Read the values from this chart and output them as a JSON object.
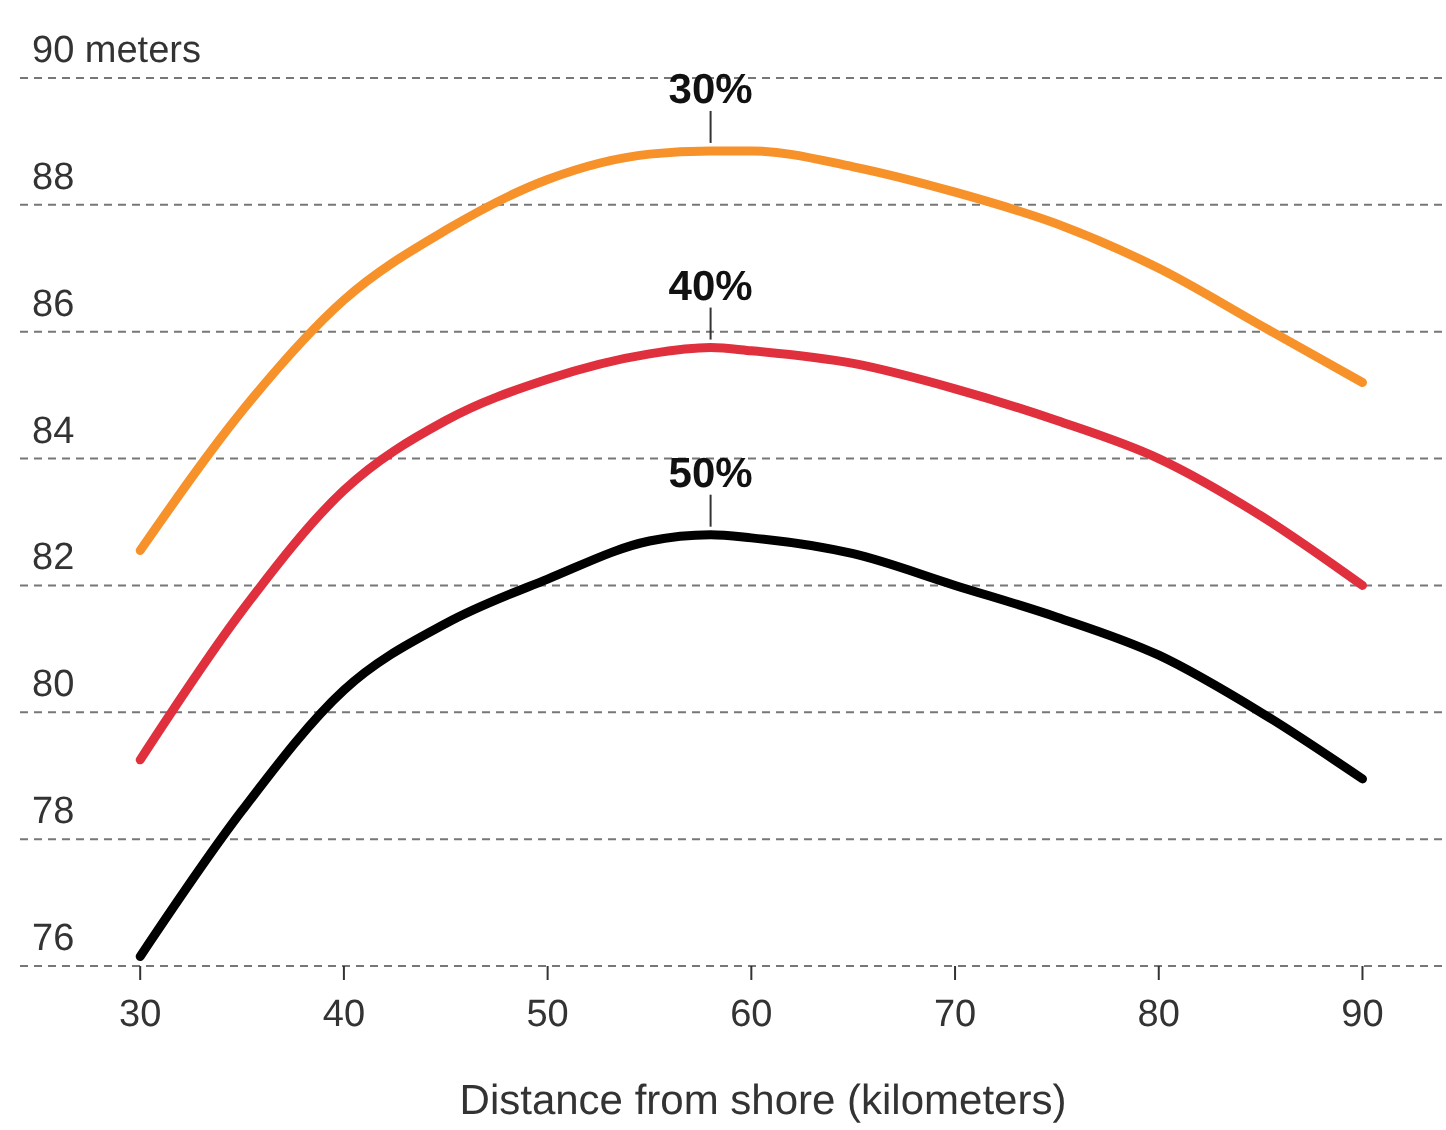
{
  "chart_data": {
    "type": "line",
    "xlabel": "Distance from shore (kilometers)",
    "x": [
      30,
      35,
      40,
      45,
      50,
      55,
      58,
      60,
      65,
      70,
      75,
      80,
      85,
      90
    ],
    "series": [
      {
        "name": "30%",
        "color": "#f7922a",
        "values": [
          82.55,
          84.75,
          86.5,
          87.6,
          88.4,
          88.8,
          88.85,
          88.85,
          88.6,
          88.2,
          87.7,
          87.0,
          86.1,
          85.2
        ]
      },
      {
        "name": "40%",
        "color": "#e0303e",
        "values": [
          79.25,
          81.6,
          83.5,
          84.6,
          85.25,
          85.65,
          85.75,
          85.7,
          85.5,
          85.1,
          84.6,
          84.0,
          83.1,
          82.0
        ]
      },
      {
        "name": "50%",
        "color": "#000000",
        "values": [
          76.15,
          78.45,
          80.35,
          81.4,
          82.1,
          82.7,
          82.8,
          82.75,
          82.5,
          82.0,
          81.5,
          80.9,
          80.0,
          78.95
        ]
      }
    ],
    "xlim": [
      24.1,
      94.1
    ],
    "xticks": [
      30,
      40,
      50,
      60,
      70,
      80,
      90
    ],
    "ylim": [
      76,
      90
    ],
    "yticks": [
      76,
      78,
      80,
      82,
      84,
      86,
      88,
      {
        "value": 90,
        "label": "90 meters"
      }
    ],
    "grid": "y",
    "marker": "none",
    "line_style": "solid"
  }
}
